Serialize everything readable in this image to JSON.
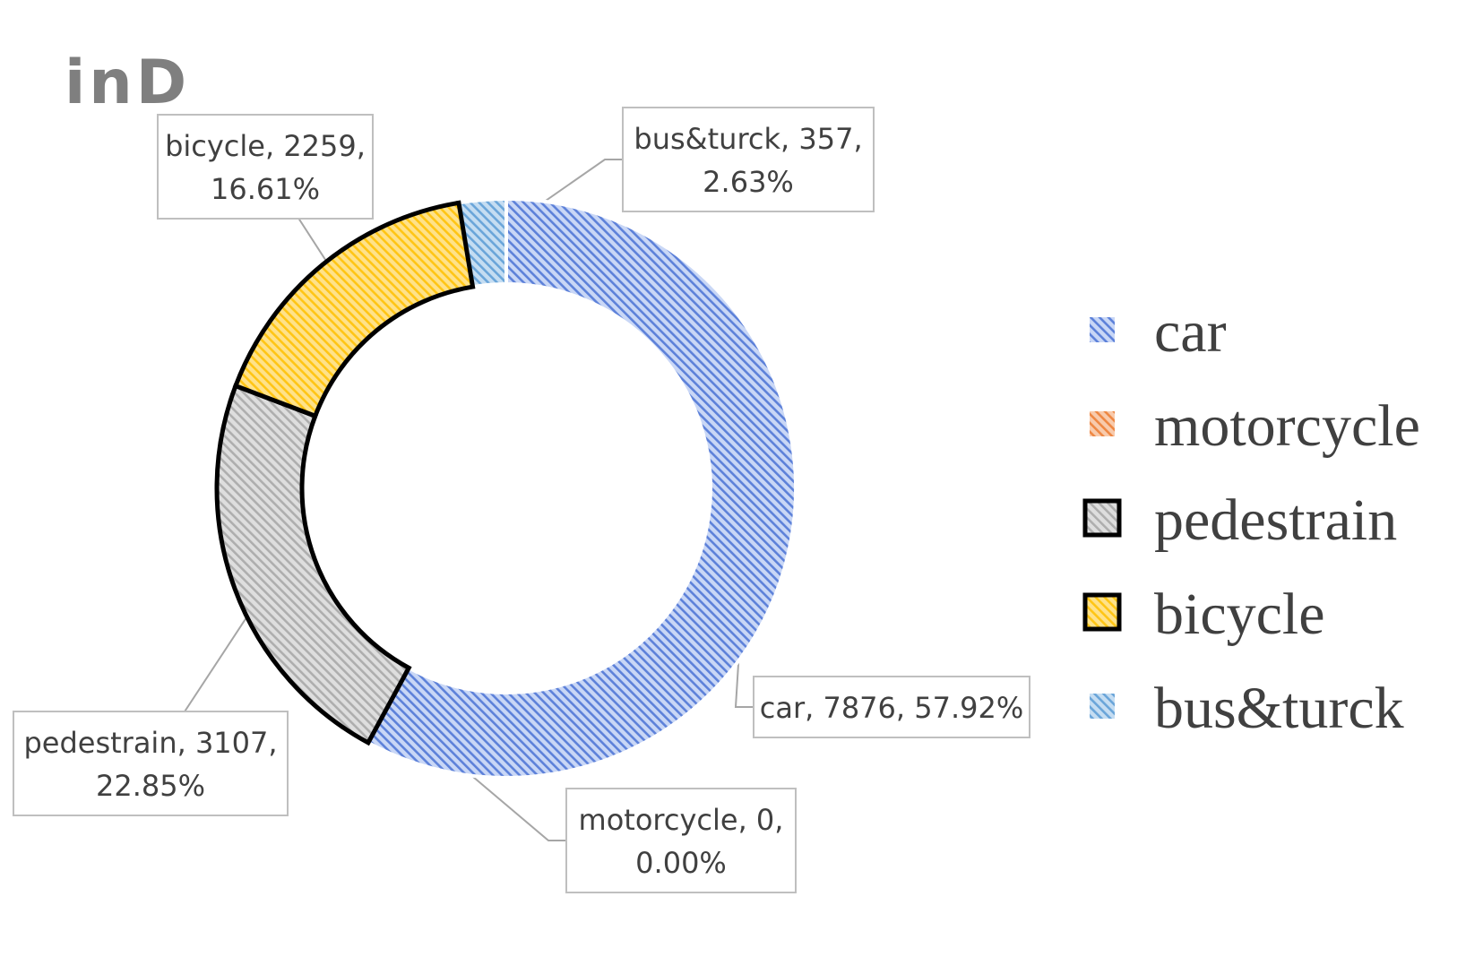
{
  "chart_data": {
    "type": "pie",
    "variant": "doughnut",
    "title": "inD",
    "categories": [
      "car",
      "motorcycle",
      "pedestrain",
      "bicycle",
      "bus&turck"
    ],
    "values": [
      7876,
      0,
      3107,
      2259,
      357
    ],
    "percentages": [
      "57.92%",
      "0.00%",
      "22.85%",
      "16.61%",
      "2.63%"
    ],
    "data_labels": [
      [
        "car, 7876, 57.92%"
      ],
      [
        "motorcycle, 0,",
        "0.00%"
      ],
      [
        "pedestrain, 3107,",
        "22.85%"
      ],
      [
        "bicycle, 2259,",
        "16.61%"
      ],
      [
        "bus&turck, 357,",
        "2.63%"
      ]
    ],
    "colors": [
      "#4a72d4",
      "#ed7d31",
      "#a6a6a6",
      "#ffc000",
      "#5b9bd5"
    ],
    "fill_tints": [
      "#c9d7f6",
      "#f8cbad",
      "#dedede",
      "#ffe28a",
      "#c5ddf2"
    ],
    "outlined": [
      false,
      false,
      true,
      true,
      false
    ],
    "legend": {
      "position": "right",
      "entries": [
        "car",
        "motorcycle",
        "pedestrain",
        "bicycle",
        "bus&turck"
      ]
    }
  }
}
